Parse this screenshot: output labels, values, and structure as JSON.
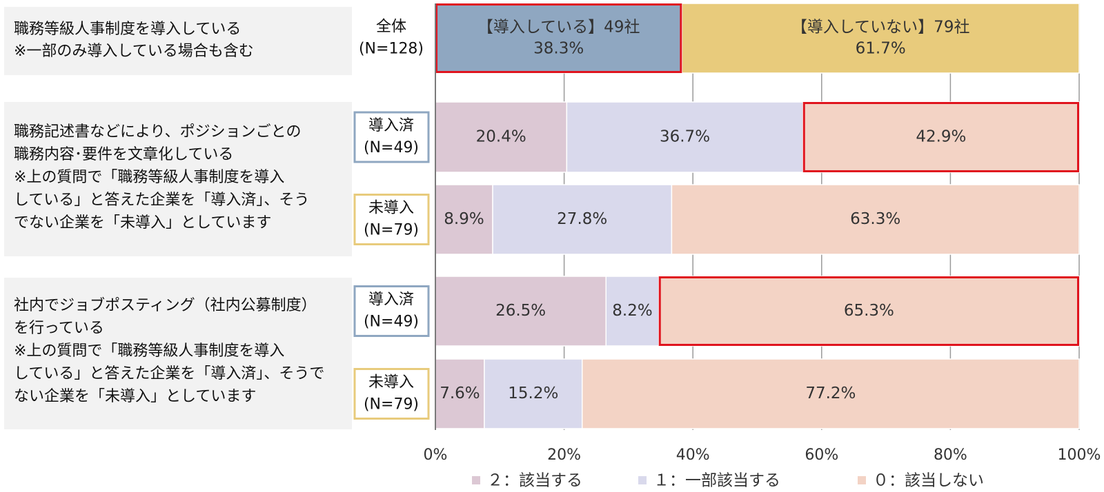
{
  "chart_data": {
    "type": "bar",
    "orientation": "horizontal",
    "stacked": true,
    "x_axis": {
      "ticks": [
        "0%",
        "20%",
        "40%",
        "60%",
        "80%",
        "100%"
      ],
      "range": [
        0,
        100
      ],
      "grid": true
    },
    "legend": {
      "placement": "bottom",
      "items": [
        {
          "key": "s2",
          "label": "２：該当する",
          "color": "#dcc8d4"
        },
        {
          "key": "s1",
          "label": "１：一部該当する",
          "color": "#d9d9ec"
        },
        {
          "key": "s0",
          "label": "０：該当しない",
          "color": "#f3d3c5"
        }
      ]
    },
    "questions": [
      {
        "lines": [
          "職務等級人事制度を導入している",
          "※一部のみ導入している場合も含む"
        ]
      },
      {
        "lines": [
          "職務記述書などにより、ポジションごとの",
          "職務内容･要件を文章化している",
          "※上の質問で「職務等級人事制度を導入",
          "している」と答えた企業を「導入済」、そう",
          "でない企業を「未導入」としています"
        ]
      },
      {
        "lines": [
          "社内でジョブポスティング（社内公募制度）",
          "を行っている",
          "※上の質問で「職務等級人事制度を導入",
          "している」と答えた企業を「導入済」、そうで",
          "ない企業を「未導入」としています"
        ]
      }
    ],
    "rows": [
      {
        "group_lines": [
          "全体",
          "(N=128)"
        ],
        "group_border": "none",
        "segments": [
          {
            "value": 38.3,
            "color": "#8fa7c1",
            "lines": [
              "【導入している】49社",
              "38.3%"
            ],
            "highlight": true
          },
          {
            "value": 61.7,
            "color": "#e8cb7c",
            "lines": [
              "【導入していない】79社",
              "61.7%"
            ],
            "highlight": false
          }
        ]
      },
      {
        "group_lines": [
          "導入済",
          "(N=49)"
        ],
        "group_border": "#8fa7c1",
        "segments": [
          {
            "value": 20.4,
            "color": "#dcc8d4",
            "lines": [
              "20.4%"
            ],
            "highlight": false
          },
          {
            "value": 36.7,
            "color": "#d9d9ec",
            "lines": [
              "36.7%"
            ],
            "highlight": false
          },
          {
            "value": 42.9,
            "color": "#f3d3c5",
            "lines": [
              "42.9%"
            ],
            "highlight": true
          }
        ]
      },
      {
        "group_lines": [
          "未導入",
          "(N=79)"
        ],
        "group_border": "#e8cb7c",
        "segments": [
          {
            "value": 8.9,
            "color": "#dcc8d4",
            "lines": [
              "8.9%"
            ],
            "highlight": false
          },
          {
            "value": 27.8,
            "color": "#d9d9ec",
            "lines": [
              "27.8%"
            ],
            "highlight": false
          },
          {
            "value": 63.3,
            "color": "#f3d3c5",
            "lines": [
              "63.3%"
            ],
            "highlight": false
          }
        ]
      },
      {
        "group_lines": [
          "導入済",
          "(N=49)"
        ],
        "group_border": "#8fa7c1",
        "segments": [
          {
            "value": 26.5,
            "color": "#dcc8d4",
            "lines": [
              "26.5%"
            ],
            "highlight": false
          },
          {
            "value": 8.2,
            "color": "#d9d9ec",
            "lines": [
              "8.2%"
            ],
            "highlight": false
          },
          {
            "value": 65.3,
            "color": "#f3d3c5",
            "lines": [
              "65.3%"
            ],
            "highlight": true
          }
        ]
      },
      {
        "group_lines": [
          "未導入",
          "(N=79)"
        ],
        "group_border": "#e8cb7c",
        "segments": [
          {
            "value": 7.6,
            "color": "#dcc8d4",
            "lines": [
              "7.6%"
            ],
            "highlight": false
          },
          {
            "value": 15.2,
            "color": "#d9d9ec",
            "lines": [
              "15.2%"
            ],
            "highlight": false
          },
          {
            "value": 77.2,
            "color": "#f3d3c5",
            "lines": [
              "77.2%"
            ],
            "highlight": false
          }
        ]
      }
    ],
    "highlight_color": "#e0141e"
  }
}
